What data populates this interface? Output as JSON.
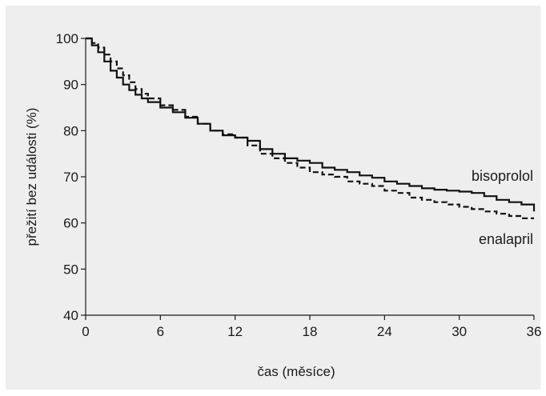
{
  "chart_data": {
    "type": "line",
    "title": "",
    "xlabel": "čas (měsíce)",
    "ylabel": "přežití bez události (%)",
    "xlim": [
      0,
      36
    ],
    "ylim": [
      40,
      100
    ],
    "xticks": [
      "0",
      "6",
      "12",
      "18",
      "24",
      "30",
      "36"
    ],
    "yticks": [
      "40",
      "50",
      "60",
      "70",
      "80",
      "90",
      "100"
    ],
    "grid": false,
    "legend": "none",
    "series": [
      {
        "name": "bisoprolol",
        "style": "solid",
        "color": "#111111",
        "x": [
          0,
          0.5,
          1,
          1.5,
          2,
          2.5,
          3,
          3.5,
          4,
          4.5,
          5,
          6,
          7,
          8,
          9,
          10,
          11,
          12,
          13,
          14,
          15,
          16,
          17,
          18,
          19,
          20,
          21,
          22,
          23,
          24,
          25,
          26,
          27,
          28,
          29,
          30,
          31,
          32,
          33,
          34,
          35,
          36
        ],
        "values": [
          100,
          98.5,
          97,
          95,
          93,
          91.5,
          90,
          88.8,
          87.8,
          87,
          86.2,
          85,
          84,
          82.8,
          81.5,
          80,
          79,
          78.5,
          77.8,
          76,
          75,
          74,
          73.5,
          73,
          72,
          71.5,
          71,
          70.3,
          69.8,
          69,
          68.5,
          68,
          67.5,
          67.2,
          67,
          66.8,
          66.5,
          65.8,
          65,
          64.5,
          64,
          62.5
        ]
      },
      {
        "name": "enalapril",
        "style": "dashed",
        "color": "#111111",
        "x": [
          0,
          0.5,
          1,
          1.5,
          2,
          2.5,
          3,
          3.5,
          4,
          4.5,
          5,
          6,
          7,
          8,
          9,
          10,
          11,
          12,
          13,
          14,
          15,
          16,
          17,
          18,
          19,
          20,
          21,
          22,
          23,
          24,
          25,
          26,
          27,
          28,
          29,
          30,
          31,
          32,
          33,
          34,
          35,
          36
        ],
        "values": [
          100,
          99,
          98,
          96.5,
          95,
          93.5,
          92,
          90.5,
          89,
          88,
          87,
          85.5,
          84.5,
          83,
          81.5,
          80,
          79.2,
          78.5,
          76.8,
          75,
          74,
          73,
          72,
          71,
          70.5,
          70,
          69,
          68.5,
          68,
          67,
          66.5,
          65.5,
          65,
          64.5,
          64,
          63.5,
          63,
          62.5,
          62,
          61.5,
          61,
          61
        ]
      }
    ]
  }
}
